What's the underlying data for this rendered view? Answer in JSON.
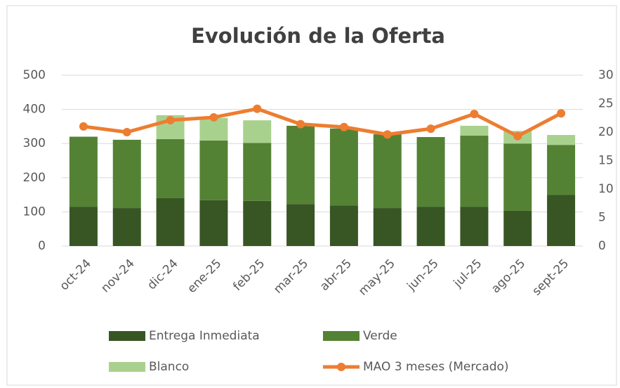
{
  "chart_data": {
    "type": "bar",
    "stacked": true,
    "title": "Evolución de la Oferta",
    "categories": [
      "oct-24",
      "nov-24",
      "dic-24",
      "ene-25",
      "feb-25",
      "mar-25",
      "abr-25",
      "may-25",
      "jun-25",
      "jul-25",
      "ago-25",
      "sept-25"
    ],
    "series": [
      {
        "name": "Entrega Inmediata",
        "color": "#375623",
        "values": [
          115,
          111,
          140,
          134,
          132,
          123,
          119,
          111,
          115,
          115,
          103,
          150
        ]
      },
      {
        "name": "Verde",
        "color": "#548235",
        "values": [
          205,
          200,
          173,
          175,
          170,
          229,
          225,
          216,
          204,
          208,
          197,
          146
        ]
      },
      {
        "name": "Blanco",
        "color": "#a9d18e",
        "values": [
          0,
          0,
          70,
          66,
          66,
          0,
          0,
          0,
          0,
          29,
          37,
          29
        ]
      },
      {
        "name": "MAO 3 meses (Mercado)",
        "color": "#ed7d31",
        "type": "line",
        "axis": "y2",
        "values": [
          21.0,
          20.0,
          22.1,
          22.6,
          24.1,
          21.4,
          20.9,
          19.6,
          20.6,
          23.2,
          19.3,
          23.3
        ]
      }
    ],
    "ylim": [
      0,
      500
    ],
    "yticks": [
      0,
      100,
      200,
      300,
      400,
      500
    ],
    "y2lim": [
      0,
      30
    ],
    "y2ticks": [
      0,
      5,
      10,
      15,
      20,
      25,
      30
    ],
    "grid": true,
    "legend": "bottom"
  }
}
